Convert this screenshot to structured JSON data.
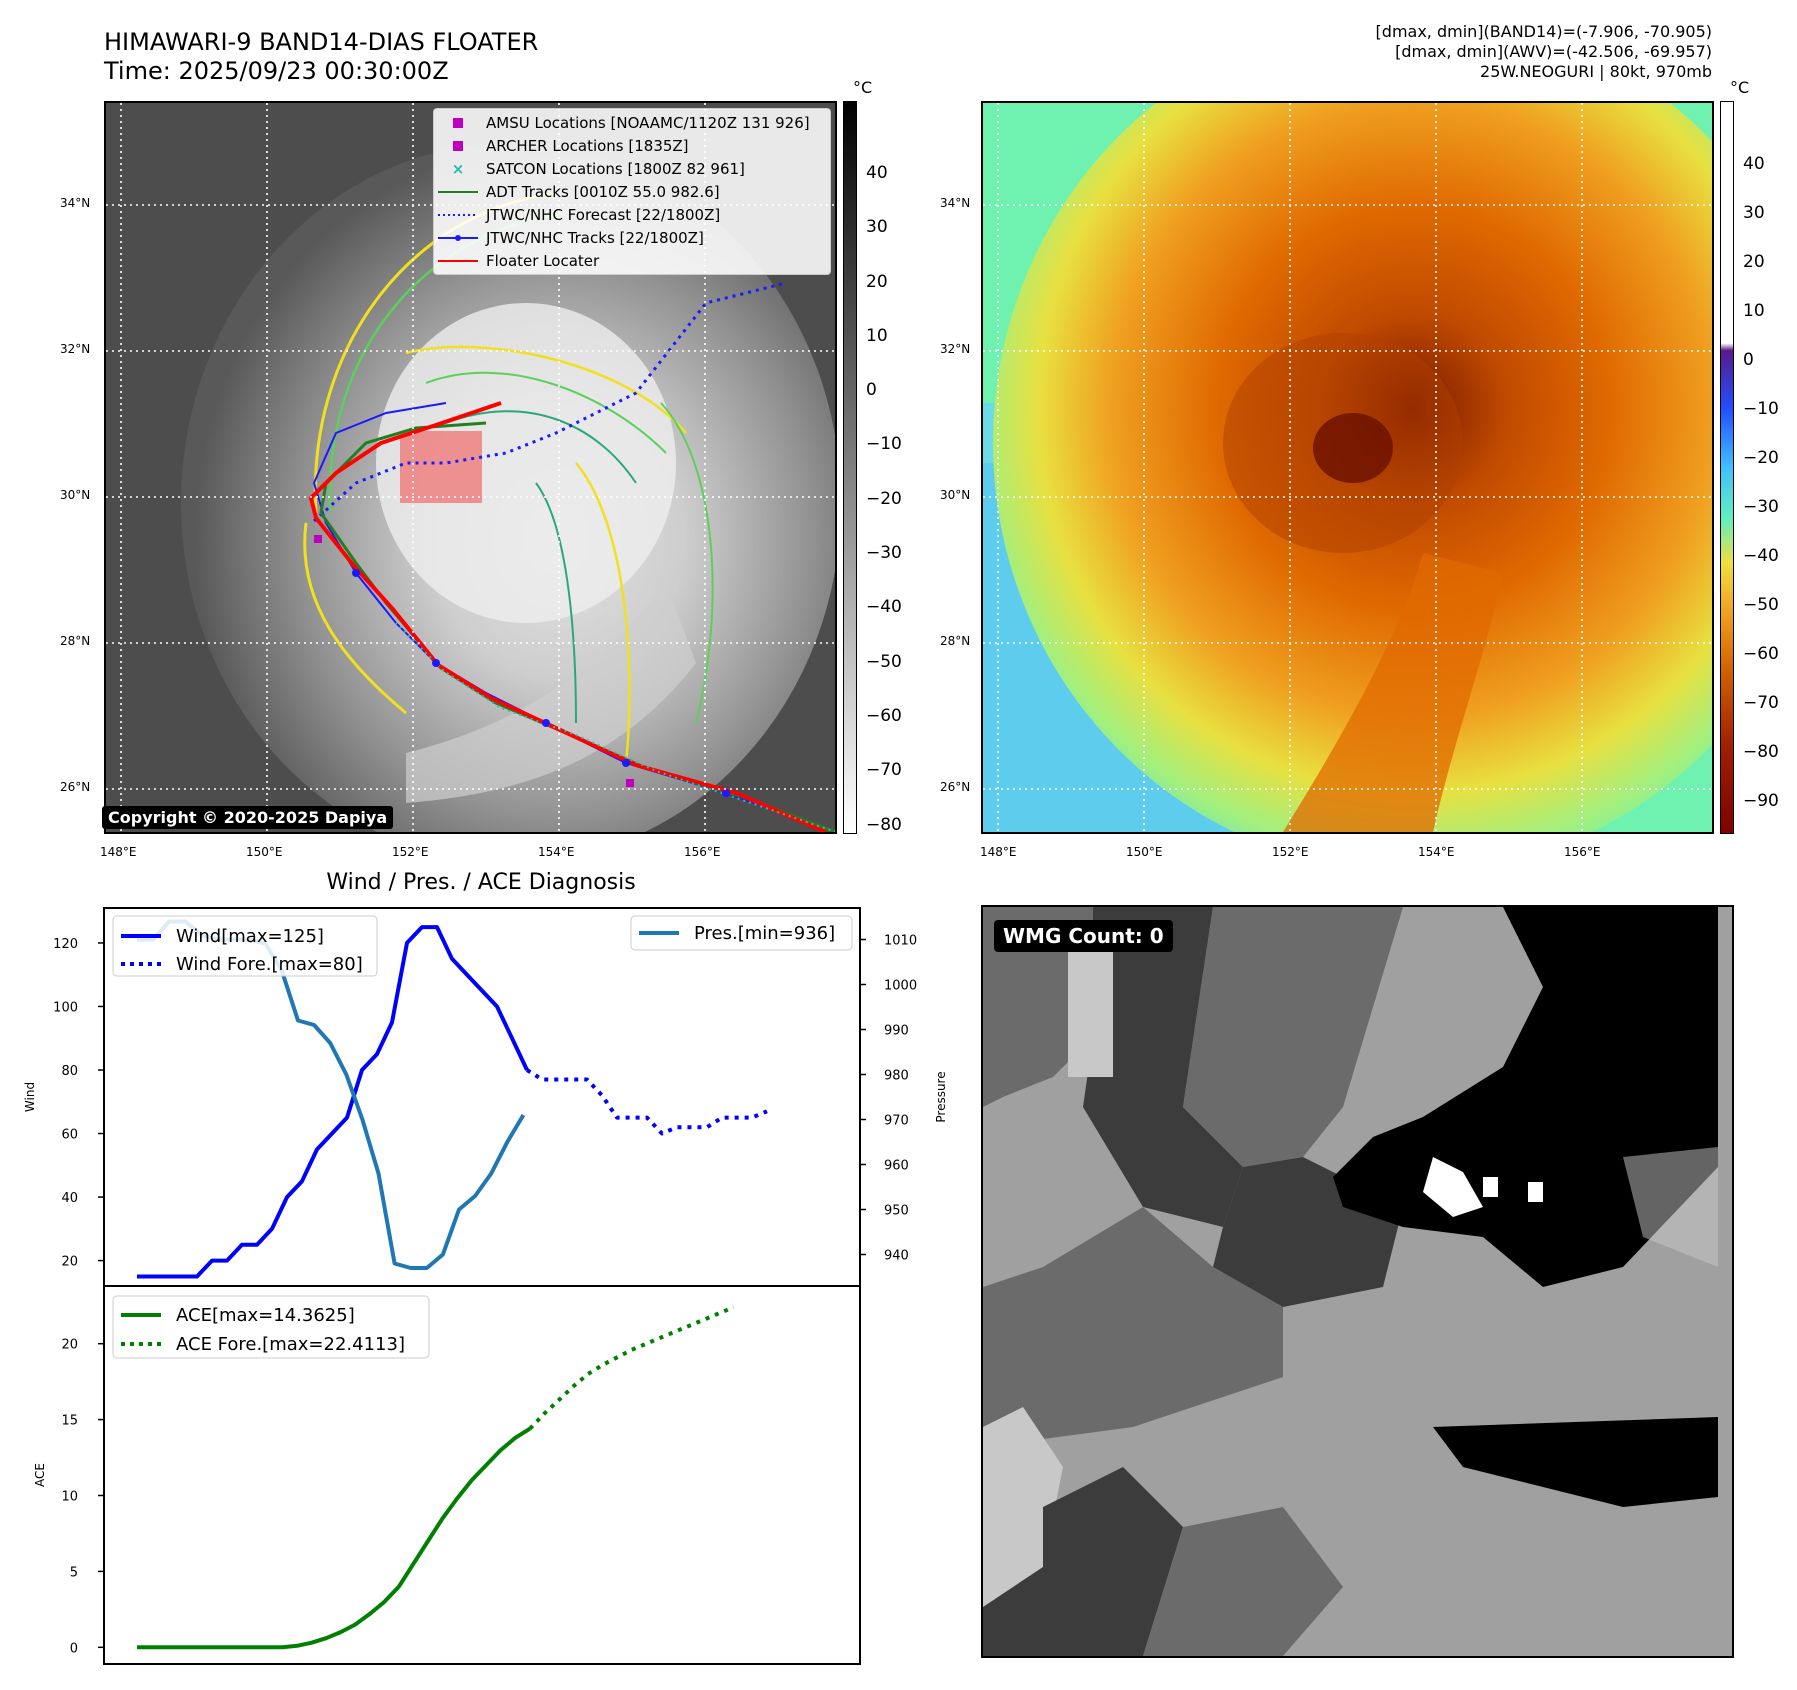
{
  "header": {
    "title_line1": "HIMAWARI-9 BAND14-DIAS FLOATER",
    "title_line2": "Time: 2025/09/23 00:30:00Z",
    "info_line1": "[dmax, dmin](BAND14)=(-7.906, -70.905)",
    "info_line2": "[dmax, dmin](AWV)=(-42.506, -69.957)",
    "info_line3": "25W.NEOGURI | 80kt, 970mb"
  },
  "maps": {
    "lat_labels": [
      "34°N",
      "32°N",
      "30°N",
      "28°N",
      "26°N"
    ],
    "lon_labels": [
      "148°E",
      "150°E",
      "152°E",
      "154°E",
      "156°E"
    ],
    "copyright": "Copyright © 2020-2025 Dapiya",
    "legend": [
      {
        "label": "AMSU Locations [NOAAMC/1120Z 131 926]",
        "color": "#c000c0",
        "marker": "square"
      },
      {
        "label": "ARCHER Locations [1835Z]",
        "color": "#c000c0",
        "marker": "square"
      },
      {
        "label": "SATCON Locations [1800Z 82 961]",
        "color": "#20c0b0",
        "marker": "x"
      },
      {
        "label": "ADT Tracks [0010Z 55.0 982.6]",
        "color": "#208020",
        "marker": "line"
      },
      {
        "label": "JTWC/NHC Forecast [22/1800Z]",
        "color": "#1a1aff",
        "marker": "dotted"
      },
      {
        "label": "JTWC/NHC Tracks [22/1800Z]",
        "color": "#1a1aff",
        "marker": "line-dot"
      },
      {
        "label": "Floater Locater",
        "color": "#ff0000",
        "marker": "line"
      }
    ],
    "colorbar_left": {
      "unit": "°C",
      "ticks": [
        "40",
        "30",
        "20",
        "10",
        "0",
        "−10",
        "−20",
        "−30",
        "−40",
        "−50",
        "−60",
        "−70",
        "−80"
      ]
    },
    "colorbar_right": {
      "unit": "°C",
      "ticks": [
        "40",
        "30",
        "20",
        "10",
        "0",
        "−10",
        "−20",
        "−30",
        "−40",
        "−50",
        "−60",
        "−70",
        "−80",
        "−90"
      ]
    }
  },
  "chart_data": [
    {
      "type": "line",
      "title": "Wind / Pres. / ACE Diagnosis",
      "ylabel": "Wind",
      "ylabel_right": "Pressure",
      "ylim": [
        12,
        131
      ],
      "ylim_right": [
        933,
        1017
      ],
      "yticks": [
        20,
        40,
        60,
        80,
        100,
        120
      ],
      "yticks_right": [
        940,
        950,
        960,
        970,
        980,
        990,
        1000,
        1010
      ],
      "series": [
        {
          "name": "Wind[max=125]",
          "color": "#0000ff",
          "style": "solid",
          "values": [
            15,
            15,
            15,
            15,
            15,
            20,
            20,
            25,
            25,
            30,
            40,
            45,
            55,
            60,
            65,
            80,
            85,
            95,
            120,
            125,
            125,
            115,
            110,
            105,
            100,
            90,
            80
          ]
        },
        {
          "name": "Wind Fore.[max=80]",
          "color": "#0000ff",
          "style": "dotted",
          "values": [
            null,
            null,
            null,
            null,
            null,
            null,
            null,
            null,
            null,
            null,
            null,
            null,
            null,
            null,
            null,
            null,
            null,
            null,
            null,
            null,
            null,
            null,
            null,
            null,
            null,
            null,
            80,
            77,
            77,
            77,
            77,
            72,
            65,
            65,
            65,
            60,
            62,
            62,
            62,
            65,
            65,
            65,
            67
          ]
        },
        {
          "name": "Pres.[min=936]",
          "color": "#1f77b4",
          "style": "solid",
          "axis": "right",
          "values": [
            1010,
            1010,
            1014,
            1014,
            1011,
            1010,
            1010,
            1010,
            1009,
            1003,
            992,
            991,
            987,
            980,
            970,
            958,
            938,
            937,
            937,
            940,
            950,
            953,
            958,
            965,
            971
          ]
        }
      ]
    },
    {
      "type": "line",
      "ylabel": "ACE",
      "ylim": [
        -1.1,
        23.8
      ],
      "yticks": [
        0,
        5,
        10,
        15,
        20
      ],
      "series": [
        {
          "name": "ACE[max=14.3625]",
          "color": "#008000",
          "style": "solid",
          "values": [
            0,
            0,
            0,
            0,
            0,
            0,
            0,
            0,
            0,
            0,
            0,
            0.1,
            0.3,
            0.6,
            1.0,
            1.5,
            2.2,
            3.0,
            4.0,
            5.5,
            7.0,
            8.5,
            9.8,
            11.0,
            12.0,
            13.0,
            13.8,
            14.4
          ]
        },
        {
          "name": "ACE Fore.[max=22.4113]",
          "color": "#008000",
          "style": "dotted",
          "values": [
            null,
            null,
            null,
            null,
            null,
            null,
            null,
            null,
            null,
            null,
            null,
            null,
            null,
            null,
            null,
            null,
            null,
            null,
            null,
            null,
            null,
            null,
            null,
            null,
            null,
            null,
            null,
            14.4,
            15.4,
            16.3,
            17.2,
            18.0,
            18.6,
            19.1,
            19.6,
            20.0,
            20.4,
            20.8,
            21.2,
            21.6,
            22.0,
            22.4
          ]
        }
      ]
    }
  ],
  "wmg": {
    "label": "WMG Count: 0"
  }
}
